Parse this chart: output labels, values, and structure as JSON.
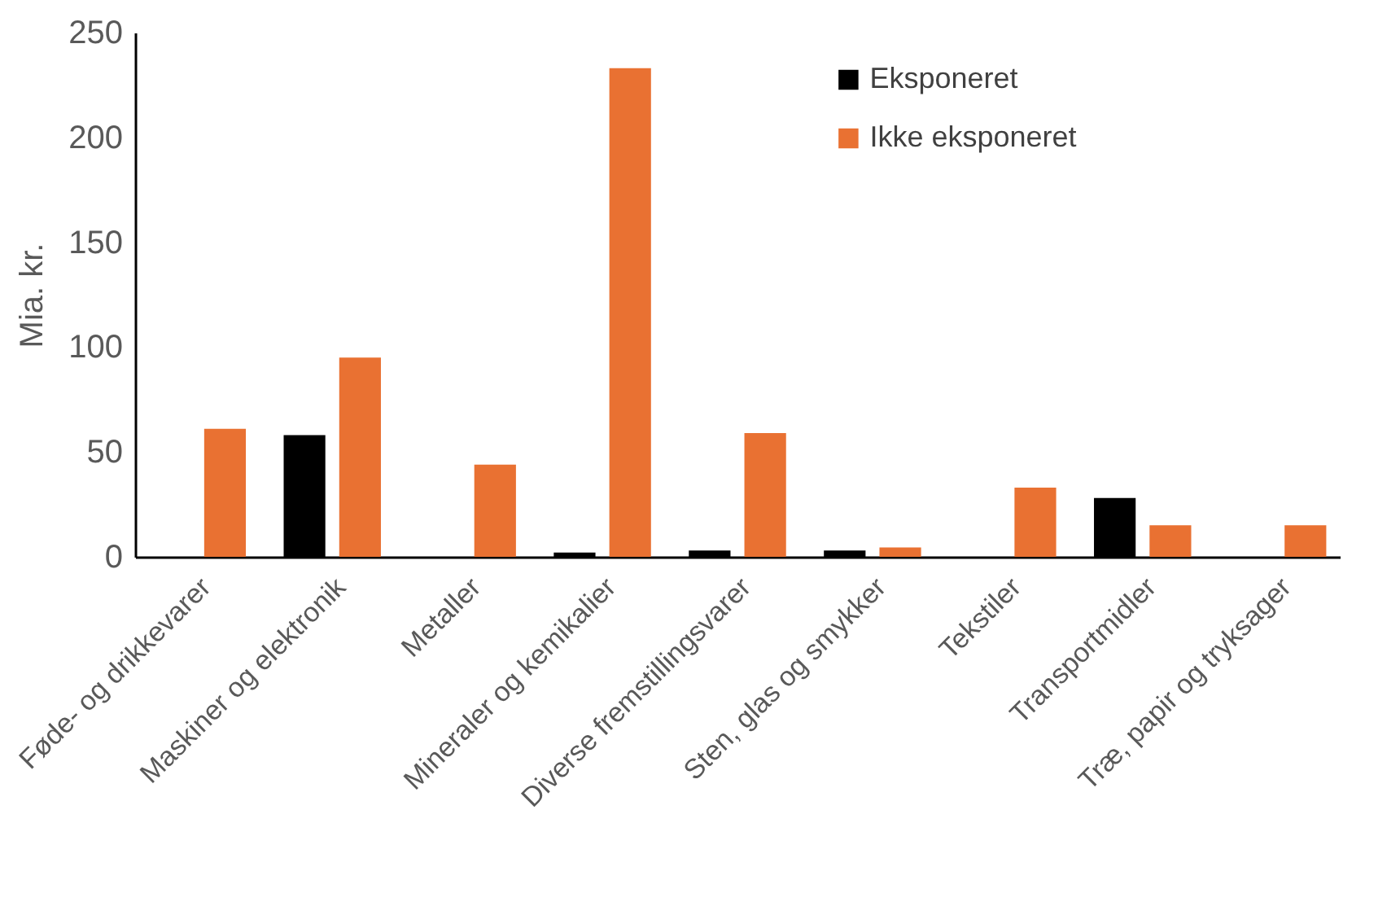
{
  "chart_data": {
    "type": "bar",
    "ylabel": "Mia. kr.",
    "categories": [
      "Føde- og drikkevarer",
      "Maskiner og elektronik",
      "Metaller",
      "Mineraler og kemikalier",
      "Diverse fremstillingsvarer",
      "Sten, glas og smykker",
      "Tekstiler",
      "Transportmidler",
      "Træ, papir og tryksager"
    ],
    "series": [
      {
        "name": "Eksponeret",
        "color": "#000000",
        "values": [
          0,
          58,
          0,
          2,
          3,
          3,
          0,
          28,
          0
        ]
      },
      {
        "name": "Ikke eksponeret",
        "color": "#e97132",
        "values": [
          61,
          95,
          44,
          233,
          59,
          4.5,
          33,
          15,
          15
        ]
      }
    ],
    "ylim": [
      0,
      250
    ],
    "yticks": [
      0,
      50,
      100,
      150,
      200,
      250
    ],
    "grid": false,
    "legend": "top right"
  }
}
